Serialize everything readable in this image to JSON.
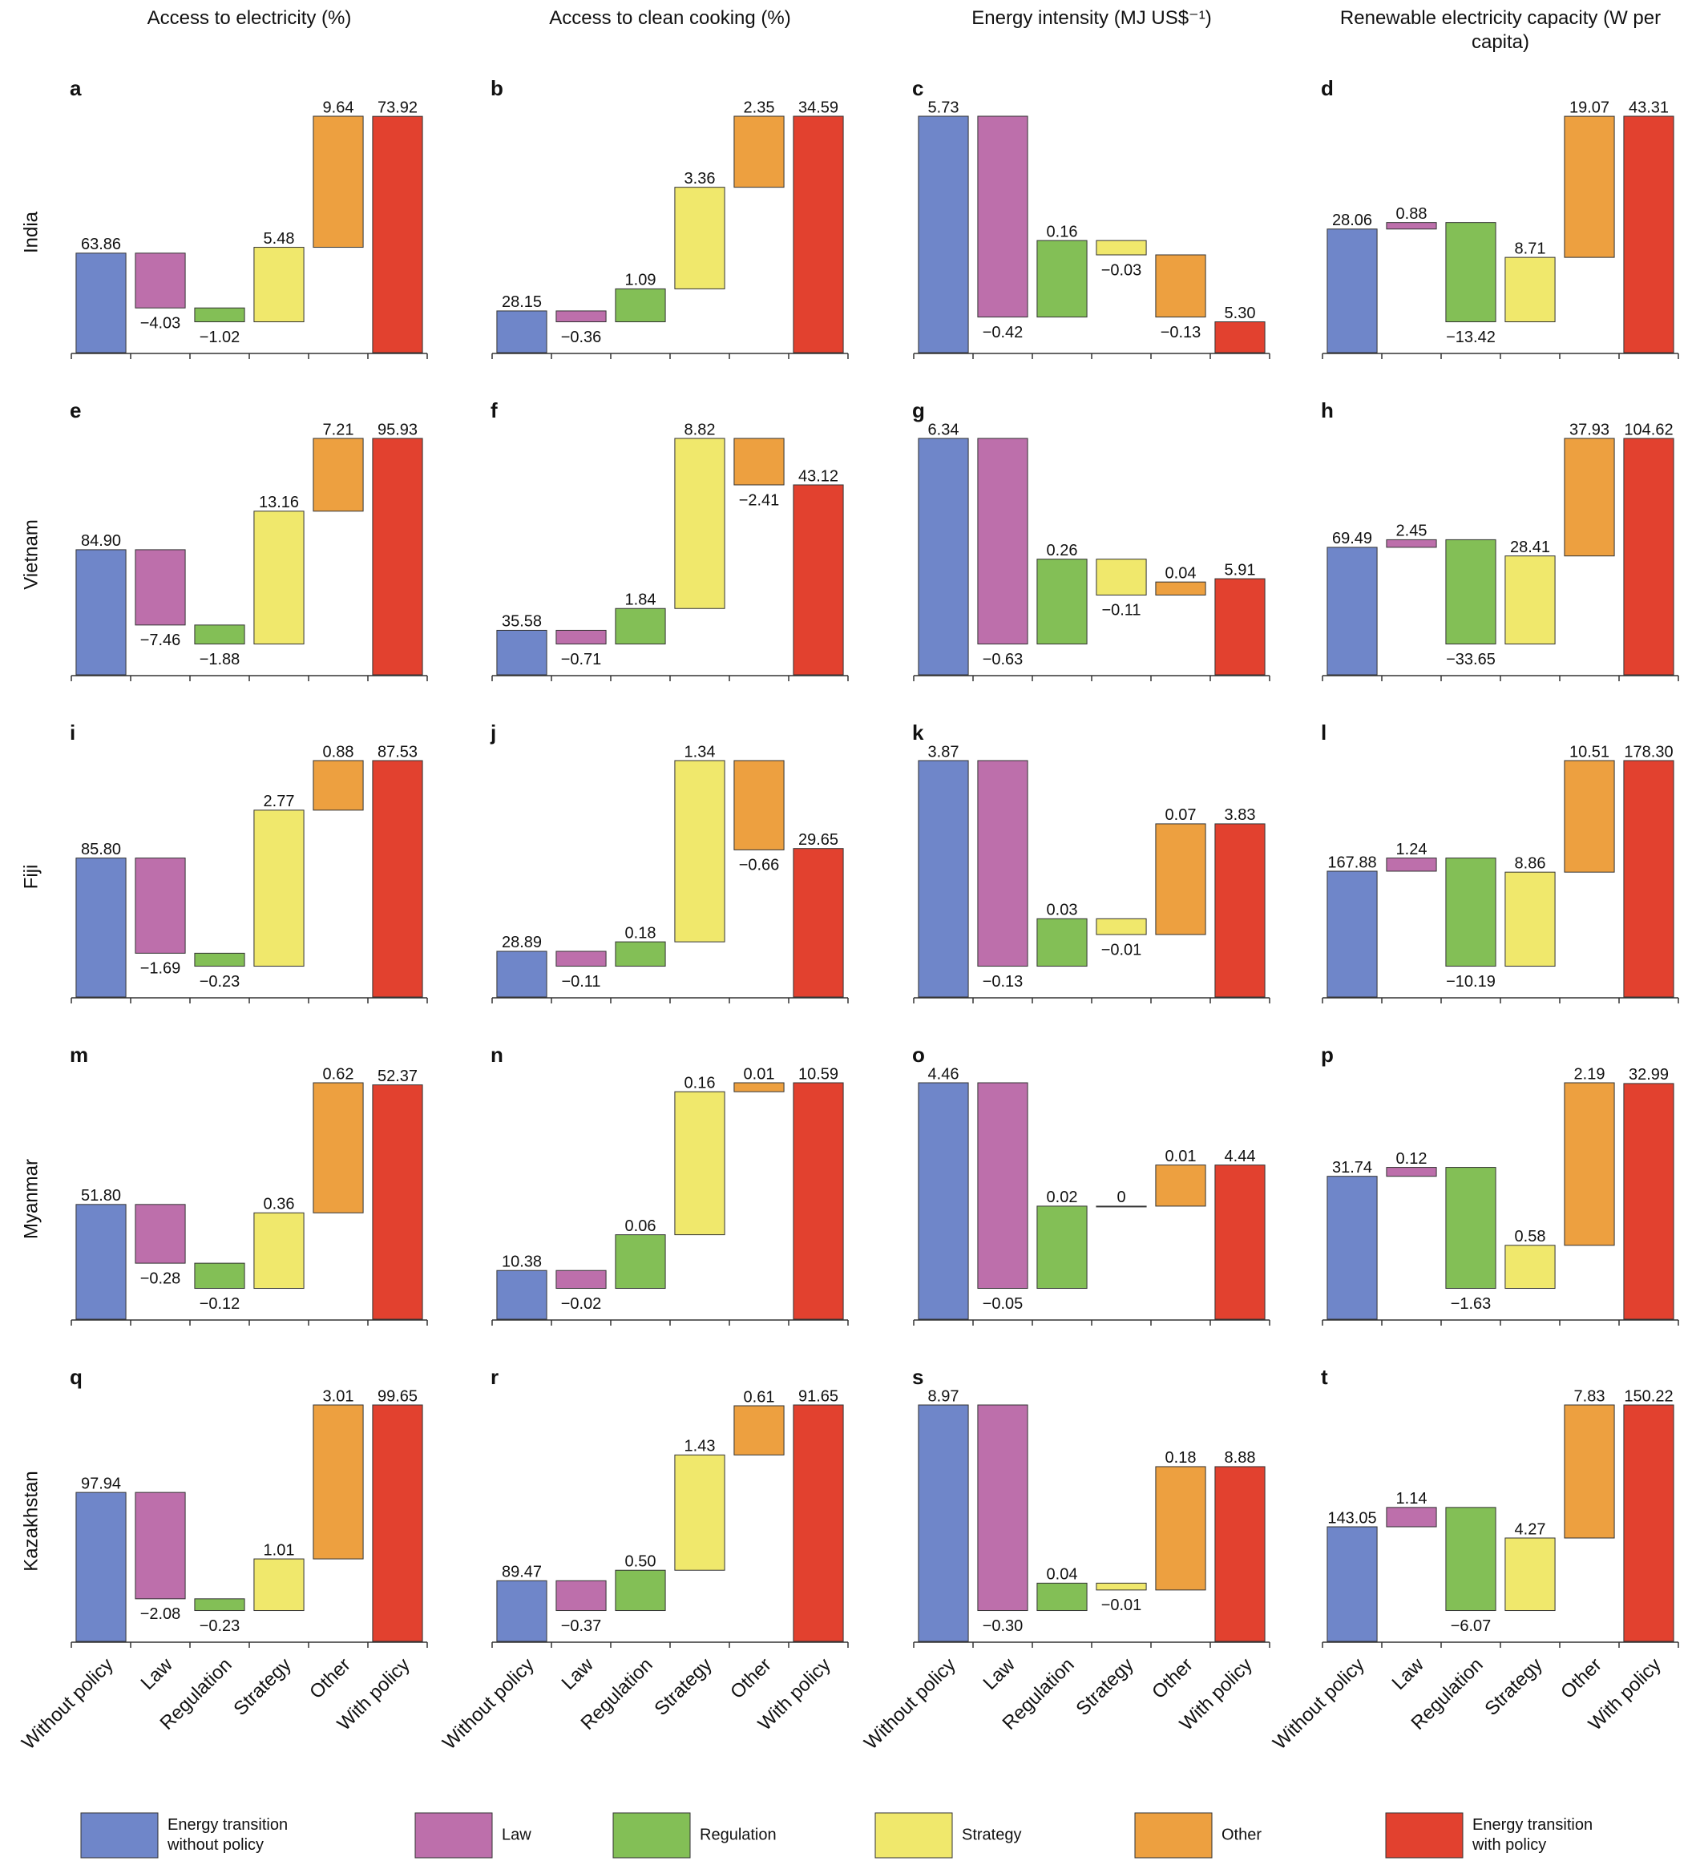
{
  "column_titles": [
    "Access to electricity (%)",
    "Access to clean cooking (%)",
    "Energy intensity (MJ US$⁻¹)",
    "Renewable electricity capacity (W per capita)"
  ],
  "row_labels": [
    "India",
    "Vietnam",
    "Fiji",
    "Myanmar",
    "Kazakhstan"
  ],
  "categories": [
    "Without policy",
    "Law",
    "Regulation",
    "Strategy",
    "Other",
    "With policy"
  ],
  "legend": [
    {
      "name": "Energy transition without policy",
      "color": "#6f86c9"
    },
    {
      "name": "Law",
      "color": "#bd6fab"
    },
    {
      "name": "Regulation",
      "color": "#83bf56"
    },
    {
      "name": "Strategy",
      "color": "#f0e86c"
    },
    {
      "name": "Other",
      "color": "#eda040"
    },
    {
      "name": "Energy transition with policy",
      "color": "#e2412f"
    }
  ],
  "chart_data": [
    {
      "type": "waterfall",
      "title": "a",
      "values": [
        63.86,
        -4.03,
        -1.02,
        5.48,
        9.64,
        73.92
      ],
      "value_labels": [
        "63.86",
        "−4.03",
        "−1.02",
        "5.48",
        "9.64",
        "73.92"
      ]
    },
    {
      "type": "waterfall",
      "title": "b",
      "values": [
        28.15,
        -0.36,
        1.09,
        3.36,
        2.35,
        34.59
      ],
      "value_labels": [
        "28.15",
        "−0.36",
        "1.09",
        "3.36",
        "2.35",
        "34.59"
      ]
    },
    {
      "type": "waterfall",
      "title": "c",
      "values": [
        5.73,
        -0.42,
        0.16,
        -0.03,
        -0.13,
        5.3
      ],
      "value_labels": [
        "5.73",
        "−0.42",
        "0.16",
        "−0.03",
        "−0.13",
        "5.30"
      ]
    },
    {
      "type": "waterfall",
      "title": "d",
      "values": [
        28.06,
        0.88,
        -13.42,
        8.71,
        19.07,
        43.31
      ],
      "value_labels": [
        "28.06",
        "0.88",
        "−13.42",
        "8.71",
        "19.07",
        "43.31"
      ]
    },
    {
      "type": "waterfall",
      "title": "e",
      "values": [
        84.9,
        -7.46,
        -1.88,
        13.16,
        7.21,
        95.93
      ],
      "value_labels": [
        "84.90",
        "−7.46",
        "−1.88",
        "13.16",
        "7.21",
        "95.93"
      ]
    },
    {
      "type": "waterfall",
      "title": "f",
      "values": [
        35.58,
        -0.71,
        1.84,
        8.82,
        -2.41,
        43.12
      ],
      "value_labels": [
        "35.58",
        "−0.71",
        "1.84",
        "8.82",
        "−2.41",
        "43.12"
      ]
    },
    {
      "type": "waterfall",
      "title": "g",
      "values": [
        6.34,
        -0.63,
        0.26,
        -0.11,
        0.04,
        5.91
      ],
      "value_labels": [
        "6.34",
        "−0.63",
        "0.26",
        "−0.11",
        "0.04",
        "5.91"
      ]
    },
    {
      "type": "waterfall",
      "title": "h",
      "values": [
        69.49,
        2.45,
        -33.65,
        28.41,
        37.93,
        104.62
      ],
      "value_labels": [
        "69.49",
        "2.45",
        "−33.65",
        "28.41",
        "37.93",
        "104.62"
      ]
    },
    {
      "type": "waterfall",
      "title": "i",
      "values": [
        85.8,
        -1.69,
        -0.23,
        2.77,
        0.88,
        87.53
      ],
      "value_labels": [
        "85.80",
        "−1.69",
        "−0.23",
        "2.77",
        "0.88",
        "87.53"
      ]
    },
    {
      "type": "waterfall",
      "title": "j",
      "values": [
        28.89,
        -0.11,
        0.18,
        1.34,
        -0.66,
        29.65
      ],
      "value_labels": [
        "28.89",
        "−0.11",
        "0.18",
        "1.34",
        "−0.66",
        "29.65"
      ]
    },
    {
      "type": "waterfall",
      "title": "k",
      "values": [
        3.87,
        -0.13,
        0.03,
        -0.01,
        0.07,
        3.83
      ],
      "value_labels": [
        "3.87",
        "−0.13",
        "0.03",
        "−0.01",
        "0.07",
        "3.83"
      ]
    },
    {
      "type": "waterfall",
      "title": "l",
      "values": [
        167.88,
        1.24,
        -10.19,
        8.86,
        10.51,
        178.3
      ],
      "value_labels": [
        "167.88",
        "1.24",
        "−10.19",
        "8.86",
        "10.51",
        "178.30"
      ]
    },
    {
      "type": "waterfall",
      "title": "m",
      "values": [
        51.8,
        -0.28,
        -0.12,
        0.36,
        0.62,
        52.37
      ],
      "value_labels": [
        "51.80",
        "−0.28",
        "−0.12",
        "0.36",
        "0.62",
        "52.37"
      ]
    },
    {
      "type": "waterfall",
      "title": "n",
      "values": [
        10.38,
        -0.02,
        0.06,
        0.16,
        0.01,
        10.59
      ],
      "value_labels": [
        "10.38",
        "−0.02",
        "0.06",
        "0.16",
        "0.01",
        "10.59"
      ]
    },
    {
      "type": "waterfall",
      "title": "o",
      "values": [
        4.46,
        -0.05,
        0.02,
        0,
        0.01,
        4.44
      ],
      "value_labels": [
        "4.46",
        "−0.05",
        "0.02",
        "0",
        "0.01",
        "4.44"
      ]
    },
    {
      "type": "waterfall",
      "title": "p",
      "values": [
        31.74,
        0.12,
        -1.63,
        0.58,
        2.19,
        32.99
      ],
      "value_labels": [
        "31.74",
        "0.12",
        "−1.63",
        "0.58",
        "2.19",
        "32.99"
      ]
    },
    {
      "type": "waterfall",
      "title": "q",
      "values": [
        97.94,
        -2.08,
        -0.23,
        1.01,
        3.01,
        99.65
      ],
      "value_labels": [
        "97.94",
        "−2.08",
        "−0.23",
        "1.01",
        "3.01",
        "99.65"
      ]
    },
    {
      "type": "waterfall",
      "title": "r",
      "values": [
        89.47,
        -0.37,
        0.5,
        1.43,
        0.61,
        91.65
      ],
      "value_labels": [
        "89.47",
        "−0.37",
        "0.50",
        "1.43",
        "0.61",
        "91.65"
      ]
    },
    {
      "type": "waterfall",
      "title": "s",
      "values": [
        8.97,
        -0.3,
        0.04,
        -0.01,
        0.18,
        8.88
      ],
      "value_labels": [
        "8.97",
        "−0.30",
        "0.04",
        "−0.01",
        "0.18",
        "8.88"
      ]
    },
    {
      "type": "waterfall",
      "title": "t",
      "values": [
        143.05,
        1.14,
        -6.07,
        4.27,
        7.83,
        150.22
      ],
      "value_labels": [
        "143.05",
        "1.14",
        "−6.07",
        "4.27",
        "7.83",
        "150.22"
      ]
    }
  ]
}
